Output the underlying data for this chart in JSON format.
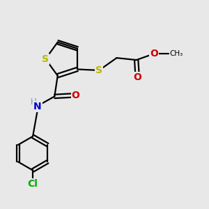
{
  "bg_color": "#e8e8e8",
  "atom_colors": {
    "S": "#b8b800",
    "N": "#0000cc",
    "O": "#cc0000",
    "Cl": "#00aa00",
    "C": "#000000",
    "H": "#888888"
  },
  "bond_color": "#000000",
  "bond_lw": 1.6
}
